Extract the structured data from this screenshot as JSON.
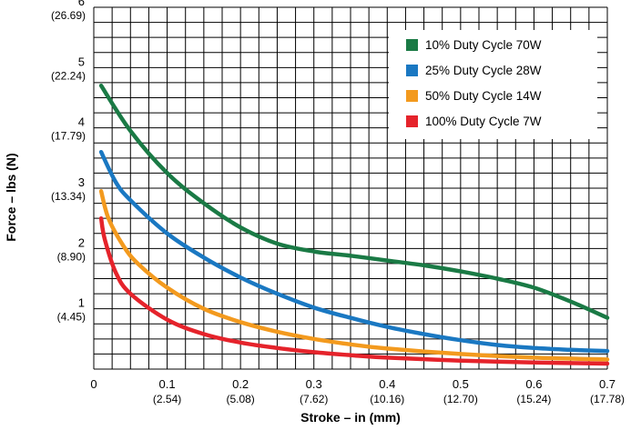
{
  "chart_data": {
    "type": "line",
    "xlabel": "Stroke – in (mm)",
    "ylabel": "Force – lbs (N)",
    "xlim": [
      0,
      0.7
    ],
    "ylim": [
      0,
      6
    ],
    "grid": true,
    "legend_position": "top-right",
    "x_ticks": [
      {
        "value": 0,
        "label": "0",
        "sublabel": ""
      },
      {
        "value": 0.1,
        "label": "0.1",
        "sublabel": "(2.54)"
      },
      {
        "value": 0.2,
        "label": "0.2",
        "sublabel": "(5.08)"
      },
      {
        "value": 0.3,
        "label": "0.3",
        "sublabel": "(7.62)"
      },
      {
        "value": 0.4,
        "label": "0.4",
        "sublabel": "(10.16)"
      },
      {
        "value": 0.5,
        "label": "0.5",
        "sublabel": "(12.70)"
      },
      {
        "value": 0.6,
        "label": "0.6",
        "sublabel": "(15.24)"
      },
      {
        "value": 0.7,
        "label": "0.7",
        "sublabel": "(17.78)"
      }
    ],
    "y_ticks": [
      {
        "value": 1,
        "label": "1",
        "sublabel": "(4.45)"
      },
      {
        "value": 2,
        "label": "2",
        "sublabel": "(8.90)"
      },
      {
        "value": 3,
        "label": "3",
        "sublabel": "(13.34)"
      },
      {
        "value": 4,
        "label": "4",
        "sublabel": "(17.79)"
      },
      {
        "value": 5,
        "label": "5",
        "sublabel": "(22.24)"
      },
      {
        "value": 6,
        "label": "6",
        "sublabel": "(26.69)"
      }
    ],
    "series": [
      {
        "name": "10% Duty Cycle 70W",
        "color": "#1a7a45",
        "x": [
          0.01,
          0.05,
          0.1,
          0.15,
          0.2,
          0.25,
          0.3,
          0.35,
          0.4,
          0.45,
          0.5,
          0.55,
          0.6,
          0.65,
          0.7
        ],
        "y": [
          4.7,
          3.95,
          3.25,
          2.75,
          2.35,
          2.08,
          1.95,
          1.88,
          1.8,
          1.72,
          1.62,
          1.5,
          1.35,
          1.12,
          0.85
        ]
      },
      {
        "name": "25% Duty Cycle 28W",
        "color": "#1a78c2",
        "x": [
          0.01,
          0.03,
          0.05,
          0.1,
          0.15,
          0.2,
          0.25,
          0.3,
          0.35,
          0.4,
          0.45,
          0.5,
          0.55,
          0.6,
          0.65,
          0.7
        ],
        "y": [
          3.6,
          3.1,
          2.8,
          2.25,
          1.85,
          1.52,
          1.25,
          1.02,
          0.85,
          0.7,
          0.58,
          0.48,
          0.4,
          0.35,
          0.32,
          0.3
        ]
      },
      {
        "name": "50% Duty Cycle 14W",
        "color": "#f39a1e",
        "x": [
          0.01,
          0.02,
          0.04,
          0.06,
          0.1,
          0.15,
          0.2,
          0.25,
          0.3,
          0.35,
          0.4,
          0.5,
          0.6,
          0.7
        ],
        "y": [
          2.95,
          2.5,
          2.05,
          1.75,
          1.35,
          1.0,
          0.78,
          0.62,
          0.5,
          0.41,
          0.34,
          0.25,
          0.19,
          0.16
        ]
      },
      {
        "name": "100% Duty Cycle 7W",
        "color": "#e5232b",
        "x": [
          0.01,
          0.015,
          0.03,
          0.05,
          0.1,
          0.15,
          0.2,
          0.25,
          0.3,
          0.35,
          0.4,
          0.5,
          0.6,
          0.7
        ],
        "y": [
          2.5,
          2.15,
          1.6,
          1.25,
          0.82,
          0.58,
          0.44,
          0.35,
          0.28,
          0.23,
          0.19,
          0.14,
          0.11,
          0.09
        ]
      }
    ]
  }
}
